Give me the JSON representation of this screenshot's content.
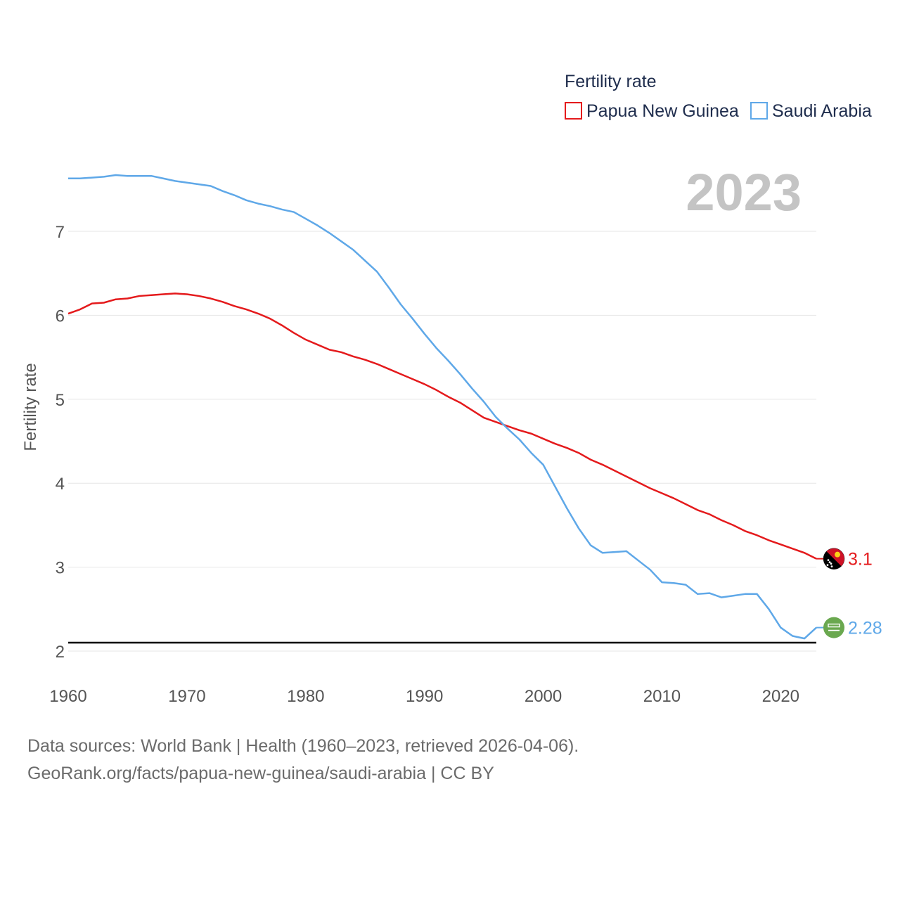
{
  "chart_data": {
    "type": "line",
    "legend_title": "Fertility rate",
    "year_display": "2023",
    "ylabel": "Fertility rate",
    "xlabel": "",
    "xlim": [
      1960,
      2023
    ],
    "ylim": [
      1.7,
      7.95
    ],
    "x_ticks": [
      1960,
      1970,
      1980,
      1990,
      2000,
      2010,
      2020
    ],
    "y_ticks": [
      2,
      3,
      4,
      5,
      6,
      7
    ],
    "replacement_level": 2.1,
    "grid": "horizontal",
    "legend_position": "top-right",
    "x": [
      1960,
      1961,
      1962,
      1963,
      1964,
      1965,
      1966,
      1967,
      1968,
      1969,
      1970,
      1971,
      1972,
      1973,
      1974,
      1975,
      1976,
      1977,
      1978,
      1979,
      1980,
      1981,
      1982,
      1983,
      1984,
      1985,
      1986,
      1987,
      1988,
      1989,
      1990,
      1991,
      1992,
      1993,
      1994,
      1995,
      1996,
      1997,
      1998,
      1999,
      2000,
      2001,
      2002,
      2003,
      2004,
      2005,
      2006,
      2007,
      2008,
      2009,
      2010,
      2011,
      2012,
      2013,
      2014,
      2015,
      2016,
      2017,
      2018,
      2019,
      2020,
      2021,
      2022,
      2023
    ],
    "series": [
      {
        "name": "Papua New Guinea",
        "color": "#e41a1c",
        "flag_icon": "papua-new-guinea-flag-icon",
        "end_label": "3.1",
        "values": [
          6.02,
          6.07,
          6.14,
          6.15,
          6.19,
          6.2,
          6.23,
          6.24,
          6.25,
          6.26,
          6.25,
          6.23,
          6.2,
          6.16,
          6.11,
          6.07,
          6.02,
          5.96,
          5.88,
          5.79,
          5.71,
          5.65,
          5.59,
          5.56,
          5.51,
          5.47,
          5.42,
          5.36,
          5.3,
          5.24,
          5.18,
          5.11,
          5.03,
          4.96,
          4.87,
          4.78,
          4.73,
          4.68,
          4.63,
          4.59,
          4.53,
          4.47,
          4.42,
          4.36,
          4.28,
          4.22,
          4.15,
          4.08,
          4.01,
          3.94,
          3.88,
          3.82,
          3.75,
          3.68,
          3.63,
          3.56,
          3.5,
          3.43,
          3.38,
          3.32,
          3.27,
          3.22,
          3.17,
          3.1
        ]
      },
      {
        "name": "Saudi Arabia",
        "color": "#5fa8e8",
        "flag_icon": "saudi-arabia-flag-icon",
        "end_label": "2.28",
        "values": [
          7.63,
          7.63,
          7.64,
          7.65,
          7.67,
          7.66,
          7.66,
          7.66,
          7.63,
          7.6,
          7.58,
          7.56,
          7.54,
          7.48,
          7.43,
          7.37,
          7.33,
          7.3,
          7.26,
          7.23,
          7.15,
          7.07,
          6.98,
          6.88,
          6.78,
          6.65,
          6.52,
          6.33,
          6.13,
          5.96,
          5.78,
          5.61,
          5.46,
          5.3,
          5.13,
          4.97,
          4.79,
          4.65,
          4.52,
          4.36,
          4.22,
          3.96,
          3.7,
          3.46,
          3.26,
          3.17,
          3.18,
          3.19,
          3.08,
          2.97,
          2.82,
          2.81,
          2.79,
          2.68,
          2.69,
          2.64,
          2.66,
          2.68,
          2.68,
          2.5,
          2.28,
          2.18,
          2.15,
          2.28
        ]
      }
    ]
  },
  "footer": {
    "source_line": "Data sources: World Bank | Health (1960–2023, retrieved 2026-04-06).",
    "url_line": "GeoRank.org/facts/papua-new-guinea/saudi-arabia | CC BY"
  }
}
